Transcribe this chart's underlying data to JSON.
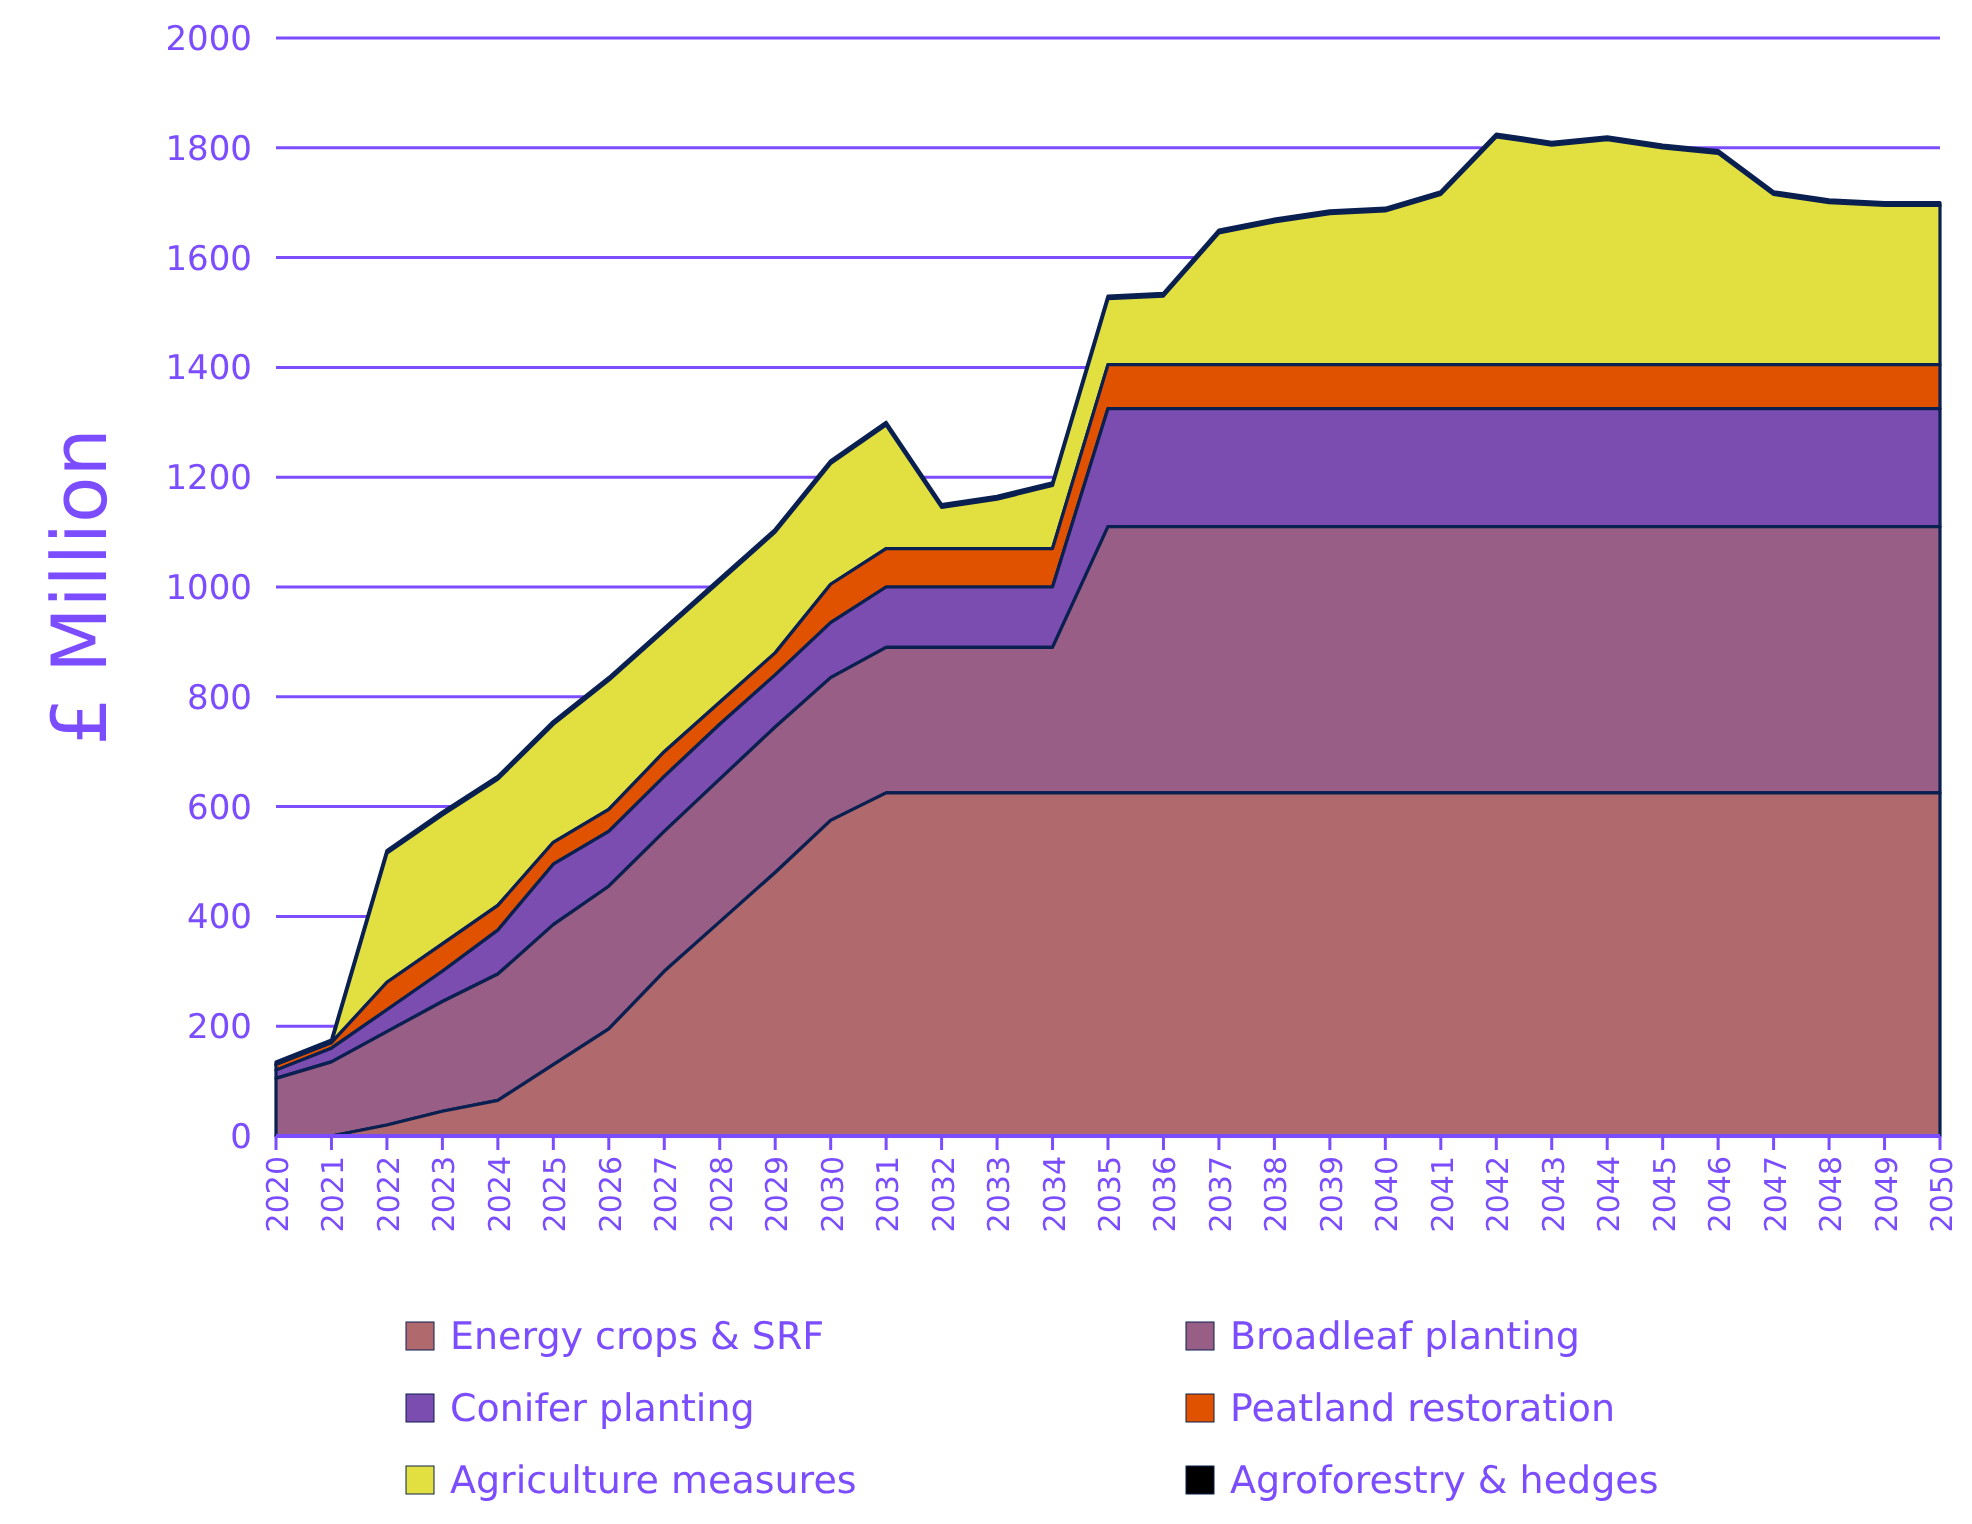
{
  "chart_data": {
    "type": "area",
    "stacked": true,
    "ylabel": "£ Million",
    "categories": [
      "2020",
      "2021",
      "2022",
      "2023",
      "2024",
      "2025",
      "2026",
      "2027",
      "2028",
      "2029",
      "2030",
      "2031",
      "2032",
      "2033",
      "2034",
      "2035",
      "2036",
      "2037",
      "2038",
      "2039",
      "2040",
      "2041",
      "2042",
      "2043",
      "2044",
      "2045",
      "2046",
      "2047",
      "2048",
      "2049",
      "2050"
    ],
    "ylim": [
      0,
      2000
    ],
    "yticks": [
      0,
      200,
      400,
      600,
      800,
      1000,
      1200,
      1400,
      1600,
      1800,
      2000
    ],
    "grid": "y",
    "legend": "bottom",
    "series": [
      {
        "name": "Energy crops & SRF",
        "color": "#b06a6e",
        "values": [
          0,
          0,
          20,
          45,
          65,
          130,
          195,
          300,
          390,
          480,
          575,
          625,
          625,
          625,
          625,
          625,
          625,
          625,
          625,
          625,
          625,
          625,
          625,
          625,
          625,
          625,
          625,
          625,
          625,
          625,
          625
        ]
      },
      {
        "name": "Broadleaf planting",
        "color": "#985e85",
        "values": [
          105,
          135,
          170,
          200,
          230,
          255,
          260,
          255,
          260,
          265,
          260,
          265,
          265,
          265,
          265,
          485,
          485,
          485,
          485,
          485,
          485,
          485,
          485,
          485,
          485,
          485,
          485,
          485,
          485,
          485,
          485
        ]
      },
      {
        "name": "Conifer planting",
        "color": "#7b4db0",
        "values": [
          15,
          25,
          40,
          55,
          80,
          110,
          100,
          100,
          100,
          95,
          100,
          110,
          110,
          110,
          110,
          215,
          215,
          215,
          215,
          215,
          215,
          215,
          215,
          215,
          215,
          215,
          215,
          215,
          215,
          215,
          215
        ]
      },
      {
        "name": "Peatland restoration",
        "color": "#e05200",
        "values": [
          10,
          10,
          50,
          50,
          45,
          40,
          40,
          45,
          40,
          40,
          70,
          70,
          70,
          70,
          70,
          80,
          80,
          80,
          80,
          80,
          80,
          80,
          80,
          80,
          80,
          80,
          80,
          80,
          80,
          80,
          80
        ]
      },
      {
        "name": "Agriculture measures",
        "color": "#e2e040",
        "values": [
          0,
          0,
          235,
          235,
          230,
          215,
          235,
          220,
          220,
          220,
          220,
          225,
          75,
          90,
          115,
          120,
          125,
          240,
          260,
          275,
          280,
          310,
          415,
          400,
          410,
          395,
          385,
          310,
          295,
          290,
          290
        ]
      },
      {
        "name": "Agroforestry & hedges",
        "color": "#000000",
        "values": [
          5,
          5,
          5,
          5,
          5,
          5,
          5,
          5,
          5,
          5,
          5,
          5,
          5,
          5,
          5,
          5,
          5,
          5,
          5,
          5,
          5,
          5,
          5,
          5,
          5,
          5,
          5,
          5,
          5,
          5,
          5
        ]
      }
    ]
  }
}
